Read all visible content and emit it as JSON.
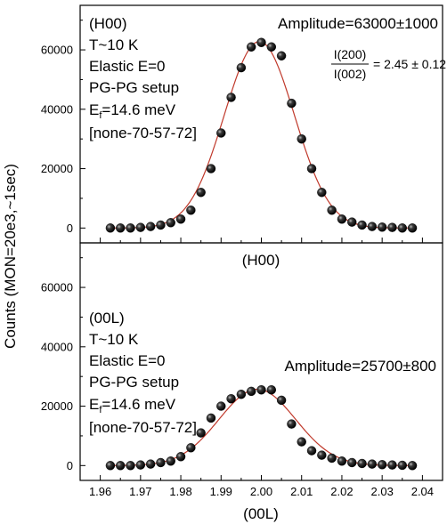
{
  "chart_data": {
    "type": "scatter",
    "ylabel": "Counts (MON=20e3,~1sec)",
    "xlabel": "(00L)",
    "xlim": [
      1.955,
      2.045
    ],
    "x_ticks": [
      1.96,
      1.97,
      1.98,
      1.99,
      2.0,
      2.01,
      2.02,
      2.03,
      2.04
    ],
    "x_tick_labels": [
      "1.96",
      "1.97",
      "1.98",
      "1.99",
      "2.00",
      "2.01",
      "2.02",
      "2.03",
      "2.04"
    ],
    "panels": [
      {
        "id": "top",
        "ylim": [
          -5000,
          75000
        ],
        "y_ticks": [
          0,
          20000,
          40000,
          60000
        ],
        "y_tick_labels": [
          "0",
          "20000",
          "40000",
          "60000"
        ],
        "labels": [
          "(H00)",
          "T~10 K",
          "Elastic E=0",
          "PG-PG setup"
        ],
        "ef_label": {
          "main": "E",
          "sub": "f",
          "rest": "=14.6 meV"
        },
        "config_label": "[none-70-57-72]",
        "amplitude": "Amplitude=63000±1000",
        "ratio": {
          "numerator": "I(200)",
          "denominator": "I(002)",
          "value": "= 2.45 ± 0.12"
        },
        "series": [
          {
            "type": "scatter",
            "color": "#1a1a1a",
            "x": [
              1.9625,
              1.965,
              1.9675,
              1.97,
              1.9725,
              1.975,
              1.9775,
              1.98,
              1.9825,
              1.985,
              1.9875,
              1.99,
              1.9925,
              1.995,
              1.9975,
              2.0,
              2.0025,
              2.005,
              2.0075,
              2.01,
              2.0125,
              2.015,
              2.0175,
              2.02,
              2.0225,
              2.025,
              2.0275,
              2.03,
              2.0325,
              2.035,
              2.0375
            ],
            "y": [
              0,
              0,
              0,
              200,
              500,
              1000,
              1800,
              3000,
              6000,
              12000,
              20000,
              32000,
              44000,
              54000,
              61000,
              62500,
              61000,
              58000,
              42000,
              30000,
              20000,
              12000,
              6000,
              3000,
              2000,
              1000,
              500,
              300,
              200,
              0,
              0
            ]
          },
          {
            "type": "line",
            "color": "#c0392b",
            "model": "gaussian",
            "amplitude": 62800,
            "center": 1.9995,
            "sigma": 0.0087,
            "baseline": 0
          }
        ]
      },
      {
        "id": "bottom",
        "ylim": [
          -5000,
          75000
        ],
        "y_ticks": [
          0,
          20000,
          40000,
          60000
        ],
        "y_tick_labels": [
          "0",
          "20000",
          "40000",
          "60000"
        ],
        "header": "(H00)",
        "labels": [
          "(00L)",
          "T~10 K",
          "Elastic E=0",
          "PG-PG setup"
        ],
        "ef_label": {
          "main": "E",
          "sub": "f",
          "rest": "=14.6 meV"
        },
        "config_label": "[none-70-57-72]",
        "amplitude": "Amplitude=25700±800",
        "series": [
          {
            "type": "scatter",
            "color": "#1a1a1a",
            "x": [
              1.9625,
              1.965,
              1.9675,
              1.97,
              1.9725,
              1.975,
              1.9775,
              1.98,
              1.9825,
              1.985,
              1.9875,
              1.99,
              1.9925,
              1.995,
              1.9975,
              2.0,
              2.0025,
              2.005,
              2.0075,
              2.01,
              2.0125,
              2.015,
              2.0175,
              2.02,
              2.0225,
              2.025,
              2.0275,
              2.03,
              2.0325,
              2.035,
              2.0375
            ],
            "y": [
              0,
              0,
              0,
              200,
              500,
              1000,
              1500,
              3000,
              6000,
              11000,
              16000,
              20000,
              22500,
              24000,
              25000,
              25500,
              25500,
              22000,
              14000,
              8000,
              5000,
              3500,
              2500,
              1500,
              1000,
              700,
              500,
              300,
              200,
              100,
              0
            ]
          },
          {
            "type": "line",
            "color": "#c0392b",
            "model": "gaussian",
            "amplitude": 25700,
            "center": 1.999,
            "sigma": 0.0095,
            "baseline": 0
          }
        ]
      }
    ]
  }
}
